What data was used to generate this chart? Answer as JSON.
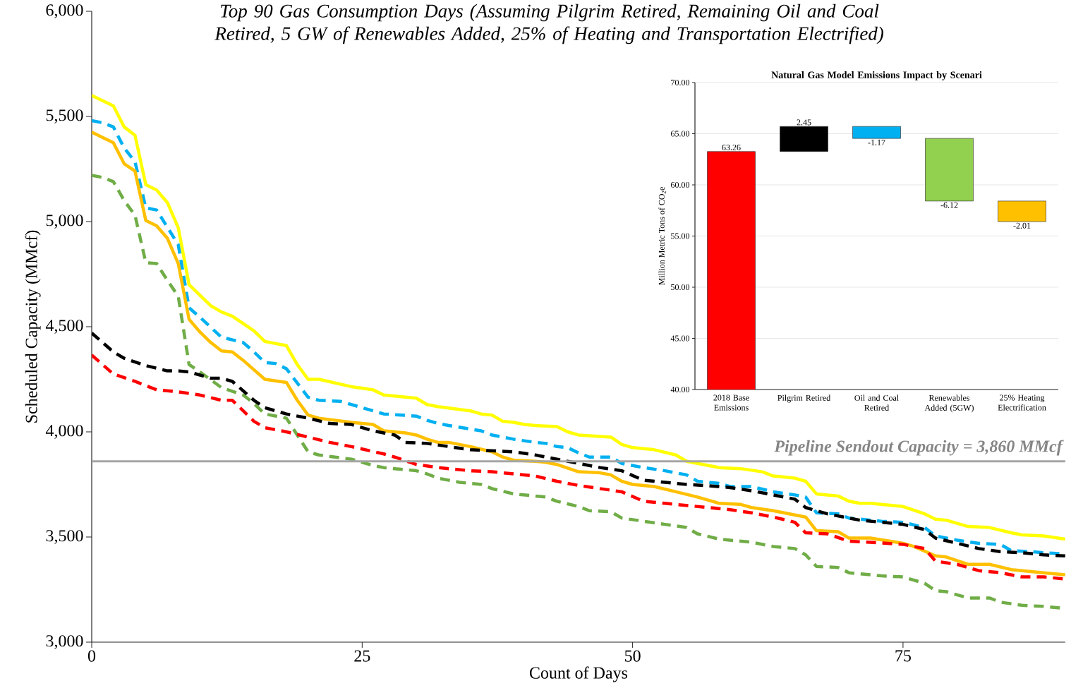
{
  "chart_data": [
    {
      "type": "line",
      "title": "Top 90 Gas Consumption Days (Assuming Pilgrim Retired, Remaining Oil and Coal Retired, 5 GW of Renewables Added, 25% of  Heating and Transportation Electrified)",
      "xlabel": "Count of Days",
      "ylabel": "Scheduled Capacity (MMcf)",
      "xlim": [
        0,
        90
      ],
      "xticks": [
        0,
        25,
        50,
        75
      ],
      "ylim": [
        3000,
        6000
      ],
      "yticks": [
        {
          "value": 3000,
          "label": "3,000"
        },
        {
          "value": 3500,
          "label": "3,500"
        },
        {
          "value": 4000,
          "label": "4,000"
        },
        {
          "value": 4500,
          "label": "4,500"
        },
        {
          "value": 5000,
          "label": "5,000"
        },
        {
          "value": 5500,
          "label": "5,500"
        },
        {
          "value": 6000,
          "label": "6,000"
        }
      ],
      "series": [
        {
          "color": "#ffff00",
          "line_style": "solid",
          "x": [
            0,
            2,
            3,
            4,
            5,
            6,
            7,
            8,
            9,
            10,
            11,
            12,
            13,
            15,
            16,
            18,
            19,
            20,
            21,
            24,
            26,
            27,
            30,
            31,
            32,
            35,
            36,
            37,
            38,
            39,
            40,
            41,
            43,
            44,
            45,
            48,
            49,
            50,
            52,
            54,
            55,
            58,
            60,
            62,
            63,
            65,
            66,
            67,
            68,
            69,
            70,
            71,
            72,
            75,
            77,
            78,
            79,
            81,
            83,
            85,
            86,
            88,
            90
          ],
          "values": [
            5600,
            5550,
            5450,
            5410,
            5175,
            5150,
            5090,
            4970,
            4700,
            4650,
            4600,
            4570,
            4550,
            4480,
            4430,
            4410,
            4320,
            4250,
            4250,
            4215,
            4200,
            4175,
            4160,
            4130,
            4120,
            4100,
            4085,
            4080,
            4050,
            4045,
            4035,
            4030,
            4025,
            4000,
            3985,
            3975,
            3940,
            3925,
            3915,
            3890,
            3860,
            3830,
            3825,
            3810,
            3790,
            3780,
            3765,
            3705,
            3700,
            3695,
            3670,
            3660,
            3660,
            3645,
            3610,
            3585,
            3580,
            3550,
            3545,
            3520,
            3510,
            3505,
            3490
          ]
        },
        {
          "color": "#00b0f0",
          "line_style": "dashed",
          "x": [
            0,
            1,
            2,
            3,
            4,
            5,
            6,
            8,
            9,
            10,
            12,
            14,
            15,
            16,
            17,
            18,
            20,
            21,
            23,
            26,
            27,
            30,
            31,
            32,
            33,
            36,
            37,
            39,
            41,
            42,
            43,
            44,
            45,
            46,
            48,
            49,
            51,
            53,
            55,
            56,
            58,
            59,
            61,
            63,
            65,
            66,
            67,
            69,
            70,
            73,
            75,
            77,
            78,
            79,
            80,
            82,
            84,
            85,
            87,
            88,
            90
          ],
          "values": [
            5480,
            5470,
            5450,
            5350,
            5285,
            5065,
            5055,
            4890,
            4590,
            4545,
            4450,
            4425,
            4380,
            4330,
            4325,
            4300,
            4165,
            4150,
            4145,
            4100,
            4085,
            4075,
            4055,
            4040,
            4030,
            4005,
            3985,
            3965,
            3950,
            3945,
            3930,
            3925,
            3900,
            3880,
            3880,
            3850,
            3830,
            3815,
            3795,
            3765,
            3755,
            3740,
            3740,
            3715,
            3700,
            3690,
            3615,
            3610,
            3590,
            3575,
            3570,
            3545,
            3505,
            3495,
            3485,
            3470,
            3465,
            3435,
            3430,
            3425,
            3420
          ]
        },
        {
          "color": "#ffc000",
          "line_style": "solid",
          "x": [
            0,
            2,
            3,
            4,
            5,
            6,
            7,
            8,
            9,
            10,
            11,
            12,
            13,
            14,
            16,
            18,
            19,
            20,
            21,
            24,
            26,
            27,
            29,
            30,
            31,
            32,
            33,
            35,
            37,
            38,
            39,
            41,
            42,
            43,
            45,
            47,
            48,
            49,
            50,
            52,
            54,
            56,
            58,
            60,
            61,
            63,
            66,
            67,
            69,
            70,
            72,
            75,
            76,
            78,
            79,
            81,
            83,
            85,
            87,
            88,
            90
          ],
          "values": [
            5425,
            5375,
            5275,
            5240,
            5005,
            4980,
            4920,
            4800,
            4535,
            4475,
            4425,
            4385,
            4380,
            4340,
            4250,
            4235,
            4150,
            4080,
            4065,
            4045,
            4035,
            4005,
            3995,
            3985,
            3965,
            3950,
            3950,
            3930,
            3905,
            3880,
            3865,
            3860,
            3855,
            3845,
            3810,
            3805,
            3795,
            3765,
            3750,
            3740,
            3715,
            3690,
            3660,
            3655,
            3640,
            3625,
            3595,
            3530,
            3525,
            3495,
            3495,
            3470,
            3455,
            3410,
            3405,
            3370,
            3370,
            3345,
            3335,
            3330,
            3320
          ]
        },
        {
          "color": "#70ad47",
          "line_style": "dashed",
          "x": [
            0,
            1,
            2,
            3,
            4,
            5,
            6,
            7,
            8,
            9,
            10,
            12,
            14,
            15,
            16,
            18,
            20,
            21,
            24,
            26,
            27,
            29,
            30,
            31,
            32,
            34,
            36,
            37,
            39,
            41,
            42,
            43,
            45,
            46,
            48,
            49,
            51,
            53,
            55,
            56,
            58,
            61,
            63,
            65,
            66,
            67,
            69,
            70,
            73,
            75,
            77,
            78,
            79,
            81,
            83,
            84,
            86,
            88,
            90
          ],
          "values": [
            5220,
            5210,
            5190,
            5100,
            5030,
            4805,
            4800,
            4720,
            4645,
            4320,
            4285,
            4210,
            4175,
            4135,
            4085,
            4065,
            3905,
            3890,
            3870,
            3840,
            3830,
            3820,
            3815,
            3800,
            3780,
            3760,
            3750,
            3730,
            3705,
            3695,
            3690,
            3670,
            3645,
            3625,
            3620,
            3590,
            3575,
            3560,
            3545,
            3515,
            3490,
            3475,
            3455,
            3445,
            3415,
            3360,
            3355,
            3330,
            3315,
            3310,
            3280,
            3245,
            3240,
            3210,
            3210,
            3190,
            3175,
            3170,
            3160
          ]
        },
        {
          "color": "#000000",
          "line_style": "dashed",
          "x": [
            0,
            2,
            3,
            5,
            7,
            8,
            9,
            11,
            12,
            13,
            15,
            16,
            18,
            20,
            22,
            24,
            26,
            28,
            29,
            31,
            33,
            35,
            37,
            39,
            41,
            43,
            45,
            47,
            49,
            51,
            53,
            55,
            58,
            59,
            61,
            63,
            65,
            66,
            68,
            71,
            73,
            75,
            77,
            78,
            80,
            82,
            84,
            86,
            88,
            90
          ],
          "values": [
            4470,
            4380,
            4350,
            4315,
            4290,
            4290,
            4285,
            4255,
            4255,
            4240,
            4150,
            4115,
            4085,
            4065,
            4040,
            4035,
            4005,
            3985,
            3950,
            3945,
            3930,
            3915,
            3910,
            3905,
            3890,
            3870,
            3850,
            3830,
            3815,
            3770,
            3760,
            3750,
            3740,
            3735,
            3720,
            3700,
            3680,
            3640,
            3610,
            3580,
            3570,
            3560,
            3535,
            3495,
            3470,
            3445,
            3430,
            3425,
            3415,
            3410
          ]
        },
        {
          "color": "#ff0000",
          "line_style": "dashed",
          "x": [
            0,
            2,
            4,
            6,
            8,
            10,
            12,
            13,
            15,
            16,
            18,
            20,
            22,
            24,
            27,
            28,
            30,
            32,
            35,
            37,
            39,
            41,
            43,
            45,
            47,
            49,
            51,
            53,
            55,
            57,
            59,
            61,
            63,
            65,
            66,
            68,
            70,
            72,
            75,
            77,
            78,
            80,
            82,
            84,
            86,
            88,
            90
          ],
          "values": [
            4365,
            4275,
            4240,
            4200,
            4190,
            4175,
            4150,
            4150,
            4050,
            4020,
            4000,
            3975,
            3950,
            3930,
            3895,
            3880,
            3845,
            3830,
            3815,
            3810,
            3800,
            3790,
            3765,
            3745,
            3730,
            3715,
            3670,
            3660,
            3650,
            3640,
            3630,
            3615,
            3595,
            3570,
            3520,
            3515,
            3480,
            3475,
            3465,
            3445,
            3385,
            3370,
            3340,
            3330,
            3310,
            3310,
            3300
          ]
        }
      ],
      "ref_lines": [
        {
          "axis": "y",
          "value": 3860,
          "label": "Pipeline Sendout Capacity = 3,860 MMcf",
          "color": "#a6a6a6"
        }
      ]
    },
    {
      "type": "bar",
      "title": "Natural Gas Model Emissions Impact by Scenari",
      "ylabel": "Million Metric Tons of CO$_{2}$e",
      "categories": [
        "2018 Base Emissions",
        "Pilgrim Retired",
        "Oil and Coal Retired",
        "Renewables Added (5GW)",
        "25% Heating Electrification"
      ],
      "values": [
        63.26,
        2.45,
        -1.17,
        -6.12,
        -2.01
      ],
      "base": [
        null,
        63.26,
        65.71,
        64.54,
        58.42
      ],
      "colors": [
        "#ff0000",
        "#000000",
        "#00b0f0",
        "#92d050",
        "#ffc000"
      ],
      "data_labels": true,
      "ylim": [
        40,
        70
      ],
      "yticks": [
        {
          "value": 40,
          "label": "40.00"
        },
        {
          "value": 45,
          "label": "45.00"
        },
        {
          "value": 50,
          "label": "50.00"
        },
        {
          "value": 55,
          "label": "55.00"
        },
        {
          "value": 60,
          "label": "60.00"
        },
        {
          "value": 65,
          "label": "65.00"
        },
        {
          "value": 70,
          "label": "70.00"
        }
      ],
      "grid": "y"
    }
  ]
}
